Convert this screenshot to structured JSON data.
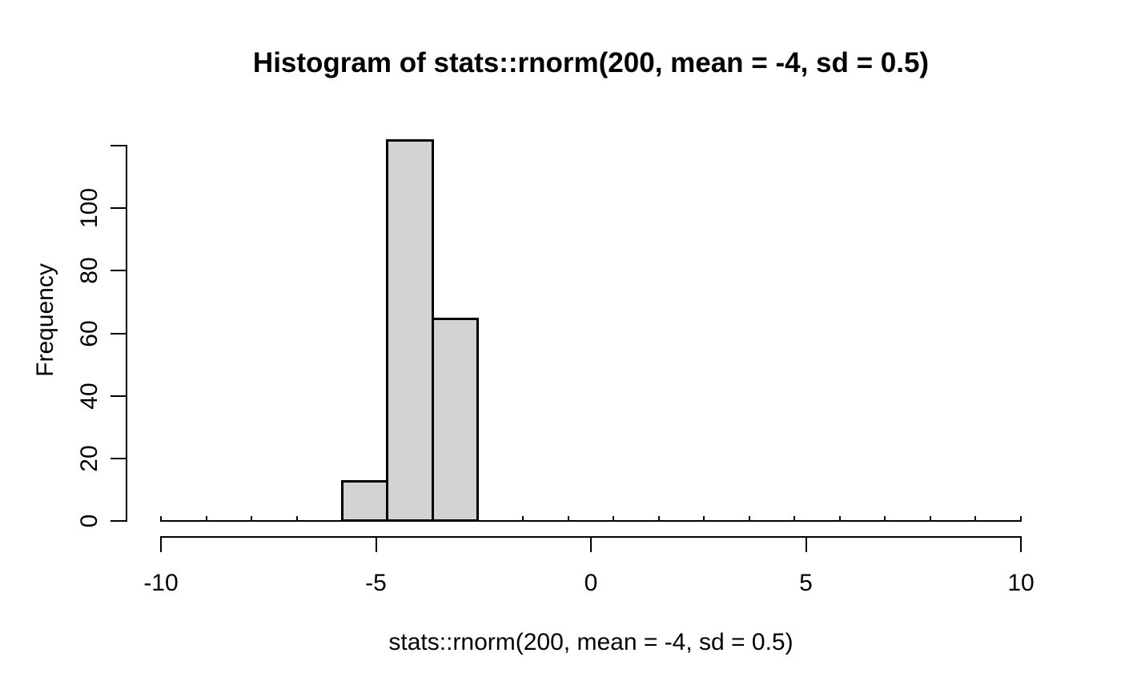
{
  "chart_data": {
    "type": "bar",
    "subtype": "histogram",
    "title": "Histogram of stats::rnorm(200, mean = -4, sd = 0.5)",
    "xlabel": "stats::rnorm(200, mean = -4, sd = 0.5)",
    "ylabel": "Frequency",
    "xlim": [
      -10,
      10
    ],
    "ylim": [
      0,
      122
    ],
    "n_bins": 19,
    "bin_width": 1.0526,
    "bin_edges_start": -10,
    "counts": [
      0,
      0,
      0,
      0,
      13,
      122,
      65,
      0,
      0,
      0,
      0,
      0,
      0,
      0,
      0,
      0,
      0,
      0,
      0
    ],
    "total_n": 200,
    "x_ticks": [
      -10,
      -5,
      0,
      5,
      10
    ],
    "x_tick_labels": [
      "-10",
      "-5",
      "0",
      "5",
      "10"
    ],
    "y_ticks": [
      0,
      20,
      40,
      60,
      80,
      100,
      120
    ],
    "y_tick_labels": [
      "0",
      "20",
      "40",
      "60",
      "80",
      "100",
      ""
    ],
    "grid": "off",
    "legend": "none",
    "bar_fill": "#d3d3d3",
    "bar_border": "#000000",
    "axis_color": "#000000",
    "background": "#ffffff"
  }
}
